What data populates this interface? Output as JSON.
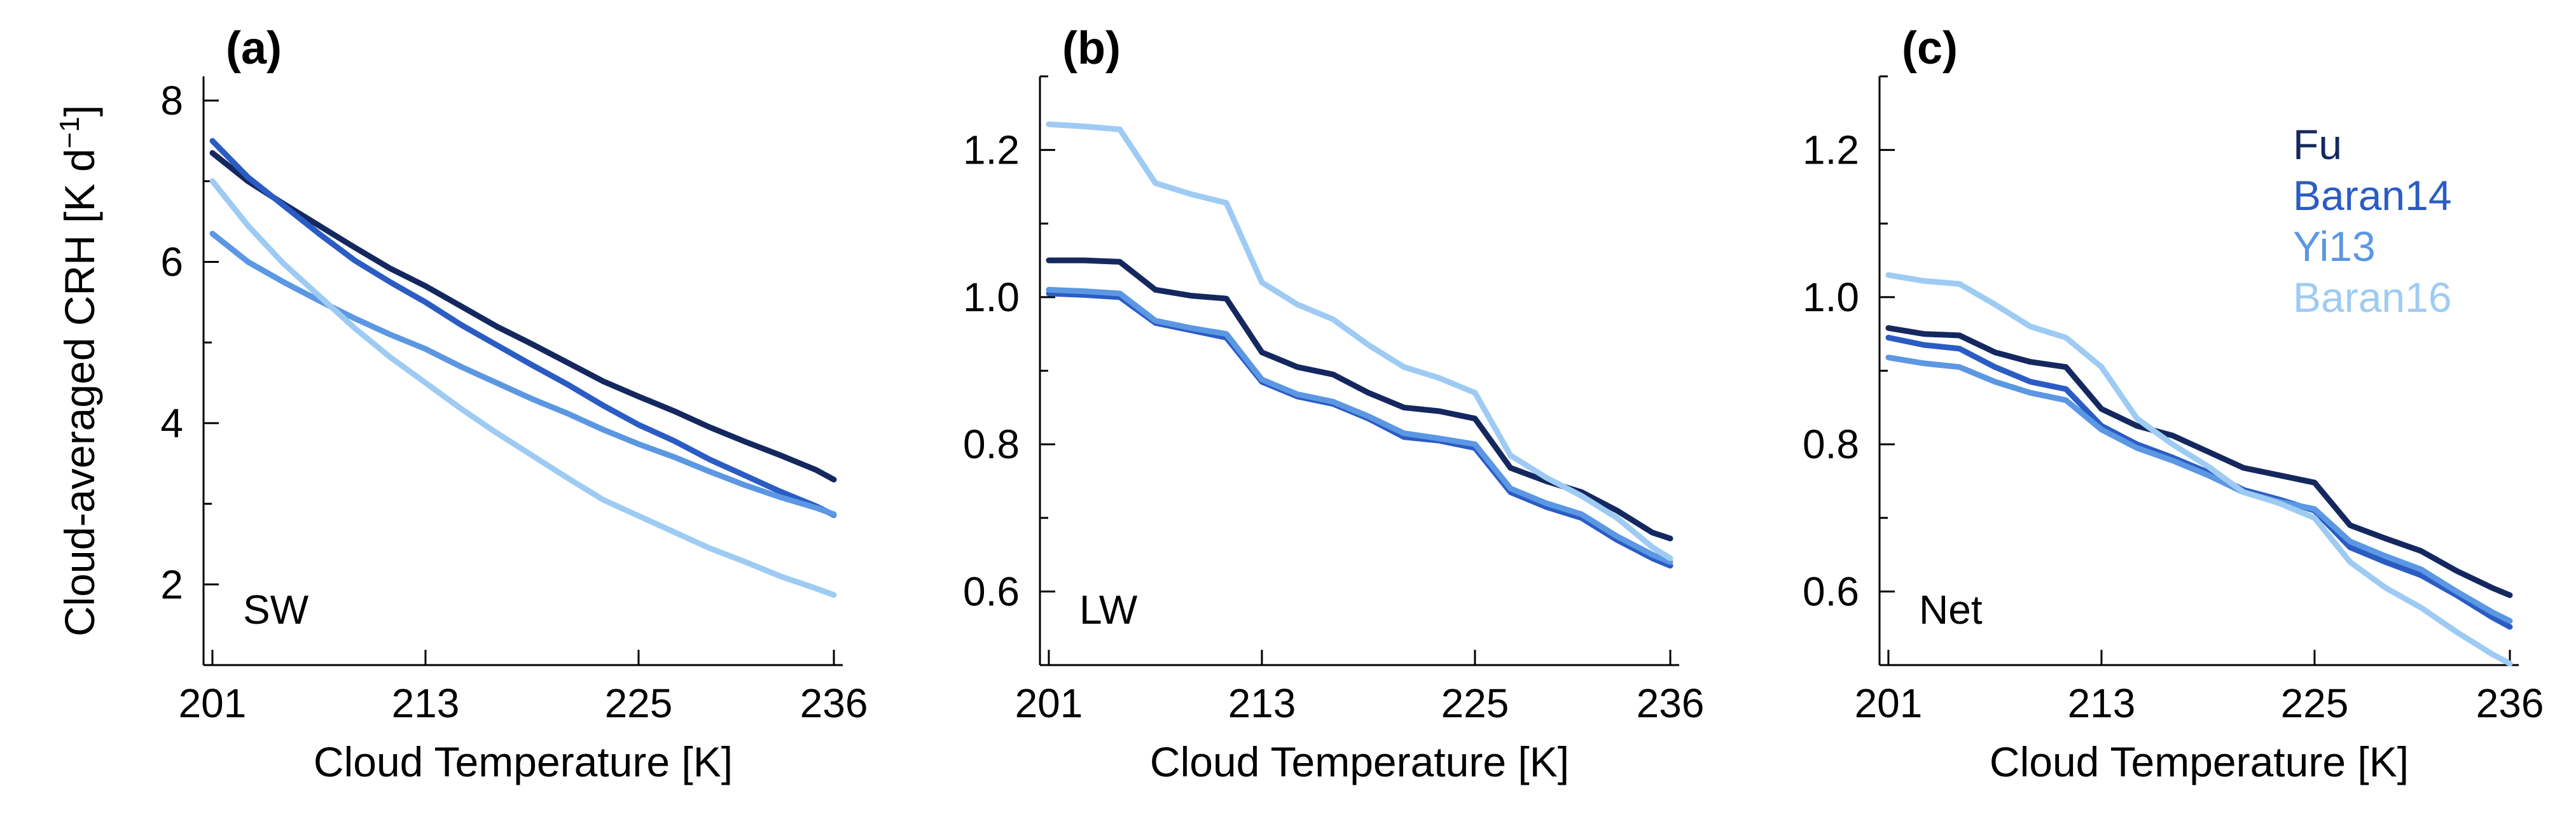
{
  "chart_data": [
    {
      "panel_label": "(a)",
      "type": "line",
      "component_label": "SW",
      "xlabel": "Cloud Temperature [K]",
      "ylabel": "Cloud-averaged CRH [K d",
      "ylabel_sup": "−1",
      "ylabel_end": "]",
      "xlim": [
        200.5,
        236.5
      ],
      "ylim": [
        1.0,
        8.3
      ],
      "xticks": [
        201,
        213,
        225,
        236
      ],
      "yticks": [
        2,
        4,
        6,
        8
      ],
      "yminor": [
        1,
        3,
        5,
        7
      ],
      "x": [
        201,
        203,
        205,
        207,
        209,
        211,
        213,
        215,
        217,
        219,
        221,
        223,
        225,
        227,
        229,
        231,
        233,
        235,
        236
      ],
      "series": [
        {
          "name": "Fu",
          "values": [
            7.35,
            7.0,
            6.72,
            6.45,
            6.18,
            5.92,
            5.7,
            5.45,
            5.2,
            4.98,
            4.75,
            4.52,
            4.33,
            4.15,
            3.95,
            3.77,
            3.6,
            3.42,
            3.3
          ]
        },
        {
          "name": "Baran14",
          "values": [
            7.5,
            7.05,
            6.7,
            6.35,
            6.02,
            5.75,
            5.5,
            5.22,
            4.97,
            4.72,
            4.48,
            4.22,
            3.98,
            3.78,
            3.55,
            3.35,
            3.15,
            2.97,
            2.86
          ]
        },
        {
          "name": "Yi13",
          "values": [
            6.35,
            6.0,
            5.75,
            5.52,
            5.3,
            5.1,
            4.92,
            4.7,
            4.5,
            4.3,
            4.12,
            3.92,
            3.74,
            3.58,
            3.4,
            3.23,
            3.08,
            2.95,
            2.87
          ]
        },
        {
          "name": "Baran16",
          "values": [
            7.0,
            6.45,
            5.98,
            5.58,
            5.18,
            4.82,
            4.5,
            4.18,
            3.88,
            3.6,
            3.32,
            3.05,
            2.85,
            2.65,
            2.45,
            2.28,
            2.1,
            1.95,
            1.87
          ]
        }
      ]
    },
    {
      "panel_label": "(b)",
      "type": "line",
      "component_label": "LW",
      "xlabel": "Cloud Temperature [K]",
      "ylabel": "",
      "xlim": [
        200.5,
        236.5
      ],
      "ylim": [
        0.5,
        1.3
      ],
      "xticks": [
        201,
        213,
        225,
        236
      ],
      "yticks": [
        0.6,
        0.8,
        1.0,
        1.2
      ],
      "yminor": [
        0.5,
        0.7,
        0.9,
        1.1,
        1.3
      ],
      "x": [
        201,
        203,
        205,
        207,
        209,
        211,
        213,
        215,
        217,
        219,
        221,
        223,
        225,
        227,
        229,
        231,
        233,
        235,
        236
      ],
      "series": [
        {
          "name": "Fu",
          "values": [
            1.05,
            1.05,
            1.048,
            1.01,
            1.002,
            0.998,
            0.925,
            0.905,
            0.895,
            0.87,
            0.85,
            0.845,
            0.835,
            0.768,
            0.75,
            0.735,
            0.71,
            0.68,
            0.672
          ]
        },
        {
          "name": "Baran14",
          "values": [
            1.005,
            1.003,
            1.0,
            0.965,
            0.955,
            0.945,
            0.885,
            0.865,
            0.855,
            0.835,
            0.81,
            0.805,
            0.795,
            0.735,
            0.715,
            0.7,
            0.67,
            0.645,
            0.635
          ]
        },
        {
          "name": "Yi13",
          "values": [
            1.01,
            1.008,
            1.005,
            0.968,
            0.958,
            0.95,
            0.888,
            0.868,
            0.858,
            0.838,
            0.815,
            0.808,
            0.8,
            0.74,
            0.72,
            0.705,
            0.675,
            0.65,
            0.64
          ]
        },
        {
          "name": "Baran16",
          "values": [
            1.235,
            1.232,
            1.228,
            1.155,
            1.14,
            1.128,
            1.02,
            0.99,
            0.97,
            0.935,
            0.905,
            0.89,
            0.87,
            0.785,
            0.755,
            0.73,
            0.7,
            0.66,
            0.645
          ]
        }
      ]
    },
    {
      "panel_label": "(c)",
      "type": "line",
      "component_label": "Net",
      "xlabel": "Cloud Temperature [K]",
      "ylabel": "",
      "xlim": [
        200.5,
        236.5
      ],
      "ylim": [
        0.5,
        1.3
      ],
      "xticks": [
        201,
        213,
        225,
        236
      ],
      "yticks": [
        0.6,
        0.8,
        1.0,
        1.2
      ],
      "yminor": [
        0.5,
        0.7,
        0.9,
        1.1,
        1.3
      ],
      "legend_position": "top-right",
      "x": [
        201,
        203,
        205,
        207,
        209,
        211,
        213,
        215,
        217,
        219,
        221,
        223,
        225,
        227,
        229,
        231,
        233,
        235,
        236
      ],
      "series": [
        {
          "name": "Fu",
          "values": [
            0.958,
            0.95,
            0.948,
            0.925,
            0.912,
            0.905,
            0.848,
            0.825,
            0.812,
            0.79,
            0.768,
            0.758,
            0.748,
            0.69,
            0.672,
            0.655,
            0.628,
            0.605,
            0.595
          ]
        },
        {
          "name": "Baran14",
          "values": [
            0.945,
            0.935,
            0.93,
            0.905,
            0.885,
            0.875,
            0.825,
            0.8,
            0.782,
            0.762,
            0.738,
            0.725,
            0.71,
            0.66,
            0.64,
            0.622,
            0.595,
            0.565,
            0.552
          ]
        },
        {
          "name": "Yi13",
          "values": [
            0.918,
            0.91,
            0.905,
            0.885,
            0.87,
            0.86,
            0.82,
            0.795,
            0.778,
            0.758,
            0.735,
            0.722,
            0.712,
            0.668,
            0.648,
            0.63,
            0.6,
            0.572,
            0.56
          ]
        },
        {
          "name": "Baran16",
          "values": [
            1.03,
            1.022,
            1.018,
            0.99,
            0.96,
            0.945,
            0.905,
            0.835,
            0.8,
            0.77,
            0.735,
            0.72,
            0.7,
            0.64,
            0.605,
            0.578,
            0.545,
            0.515,
            0.502
          ]
        }
      ]
    }
  ],
  "series_colors": {
    "Fu": "#14285f",
    "Baran14": "#2a5cc4",
    "Yi13": "#5b97e3",
    "Baran16": "#9ecbf3"
  }
}
